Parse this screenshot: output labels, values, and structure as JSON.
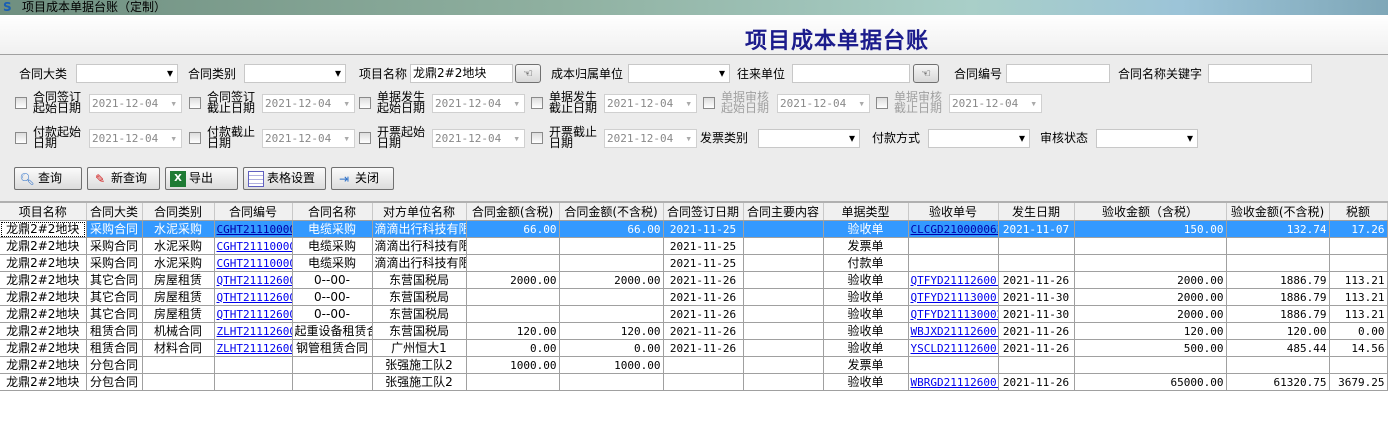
{
  "window": {
    "title": "项目成本单据台账（定制）",
    "icon": "app-logo-icon"
  },
  "page_title": "项目成本单据台账",
  "filters": {
    "contract_category": {
      "label": "合同大类",
      "value": ""
    },
    "contract_type": {
      "label": "合同类别",
      "value": ""
    },
    "project_name": {
      "label": "项目名称",
      "value": "龙鼎2#2地块"
    },
    "cost_unit": {
      "label": "成本归属单位",
      "value": ""
    },
    "partner": {
      "label": "往来单位",
      "value": ""
    },
    "contract_no": {
      "label": "合同编号",
      "value": ""
    },
    "contract_keyword": {
      "label": "合同名称关键字",
      "value": ""
    },
    "dates": [
      {
        "label": "合同签订起始日期",
        "value": "2021-12-04",
        "enabled": true
      },
      {
        "label": "合同签订截止日期",
        "value": "2021-12-04",
        "enabled": true
      },
      {
        "label": "单据发生起始日期",
        "value": "2021-12-04",
        "enabled": true
      },
      {
        "label": "单据发生截止日期",
        "value": "2021-12-04",
        "enabled": true
      },
      {
        "label": "单据审核起始日期",
        "value": "2021-12-04",
        "enabled": false
      },
      {
        "label": "单据审核截止日期",
        "value": "2021-12-04",
        "enabled": false
      },
      {
        "label": "付款起始日期",
        "value": "2021-12-04",
        "enabled": true
      },
      {
        "label": "付款截止日期",
        "value": "2021-12-04",
        "enabled": true
      },
      {
        "label": "开票起始日期",
        "value": "2021-12-04",
        "enabled": true
      },
      {
        "label": "开票截止日期",
        "value": "2021-12-04",
        "enabled": true
      }
    ],
    "invoice_type": {
      "label": "发票类别",
      "value": ""
    },
    "payment_method": {
      "label": "付款方式",
      "value": ""
    },
    "audit_status": {
      "label": "审核状态",
      "value": ""
    }
  },
  "toolbar": {
    "query": "查询",
    "new_query": "新查询",
    "export": "导出",
    "grid_settings": "表格设置",
    "close": "关闭"
  },
  "table": {
    "columns": [
      "项目名称",
      "合同大类",
      "合同类别",
      "合同编号",
      "合同名称",
      "对方单位名称",
      "合同金额(含税)",
      "合同金额(不含税)",
      "合同签订日期",
      "合同主要内容",
      "单据类型",
      "验收单号",
      "发生日期",
      "验收金额（含税）",
      "验收金额(不含税)",
      "税额"
    ],
    "rows": [
      [
        "龙鼎2#2地块",
        "采购合同",
        "水泥采购",
        "CGHT21110000",
        "电缆采购",
        "滴滴出行科技有限",
        "66.00",
        "66.00",
        "2021-11-25",
        "",
        "验收单",
        "CLCGD210000063",
        "2021-11-07",
        "150.00",
        "132.74",
        "17.26"
      ],
      [
        "龙鼎2#2地块",
        "采购合同",
        "水泥采购",
        "CGHT21110000",
        "电缆采购",
        "滴滴出行科技有限",
        "",
        "",
        "2021-11-25",
        "",
        "发票单",
        "",
        "",
        "",
        "",
        ""
      ],
      [
        "龙鼎2#2地块",
        "采购合同",
        "水泥采购",
        "CGHT21110000",
        "电缆采购",
        "滴滴出行科技有限",
        "",
        "",
        "2021-11-25",
        "",
        "付款单",
        "",
        "",
        "",
        "",
        ""
      ],
      [
        "龙鼎2#2地块",
        "其它合同",
        "房屋租赁",
        "QTHT21112600",
        "0--00-",
        "东营国税局",
        "2000.00",
        "2000.00",
        "2021-11-26",
        "",
        "验收单",
        "QTFYD211126001",
        "2021-11-26",
        "2000.00",
        "1886.79",
        "113.21"
      ],
      [
        "龙鼎2#2地块",
        "其它合同",
        "房屋租赁",
        "QTHT21112600",
        "0--00-",
        "东营国税局",
        "",
        "",
        "2021-11-26",
        "",
        "验收单",
        "QTFYD211130001",
        "2021-11-30",
        "2000.00",
        "1886.79",
        "113.21"
      ],
      [
        "龙鼎2#2地块",
        "其它合同",
        "房屋租赁",
        "QTHT21112600",
        "0--00-",
        "东营国税局",
        "",
        "",
        "2021-11-26",
        "",
        "验收单",
        "QTFYD211130002",
        "2021-11-30",
        "2000.00",
        "1886.79",
        "113.21"
      ],
      [
        "龙鼎2#2地块",
        "租赁合同",
        "机械合同",
        "ZLHT21112600",
        "起重设备租赁合",
        "东营国税局",
        "120.00",
        "120.00",
        "2021-11-26",
        "",
        "验收单",
        "WBJXD211126001",
        "2021-11-26",
        "120.00",
        "120.00",
        "0.00"
      ],
      [
        "龙鼎2#2地块",
        "租赁合同",
        "材料合同",
        "ZLHT21112600",
        "钢管租赁合同",
        "广州恒大1",
        "0.00",
        "0.00",
        "2021-11-26",
        "",
        "验收单",
        "YSCLD211126001",
        "2021-11-26",
        "500.00",
        "485.44",
        "14.56"
      ],
      [
        "龙鼎2#2地块",
        "分包合同",
        "",
        "",
        "",
        "张强施工队2",
        "1000.00",
        "1000.00",
        "",
        "",
        "发票单",
        "",
        "",
        "",
        "",
        ""
      ],
      [
        "龙鼎2#2地块",
        "分包合同",
        "",
        "",
        "",
        "张强施工队2",
        "",
        "",
        "",
        "",
        "验收单",
        "WBRGD211126001",
        "2021-11-26",
        "65000.00",
        "61320.75",
        "3679.25"
      ]
    ],
    "selected_row": 0
  },
  "colors": {
    "title": "#1c1c8c",
    "selection": "#3399ff",
    "link": "#0000ee"
  }
}
